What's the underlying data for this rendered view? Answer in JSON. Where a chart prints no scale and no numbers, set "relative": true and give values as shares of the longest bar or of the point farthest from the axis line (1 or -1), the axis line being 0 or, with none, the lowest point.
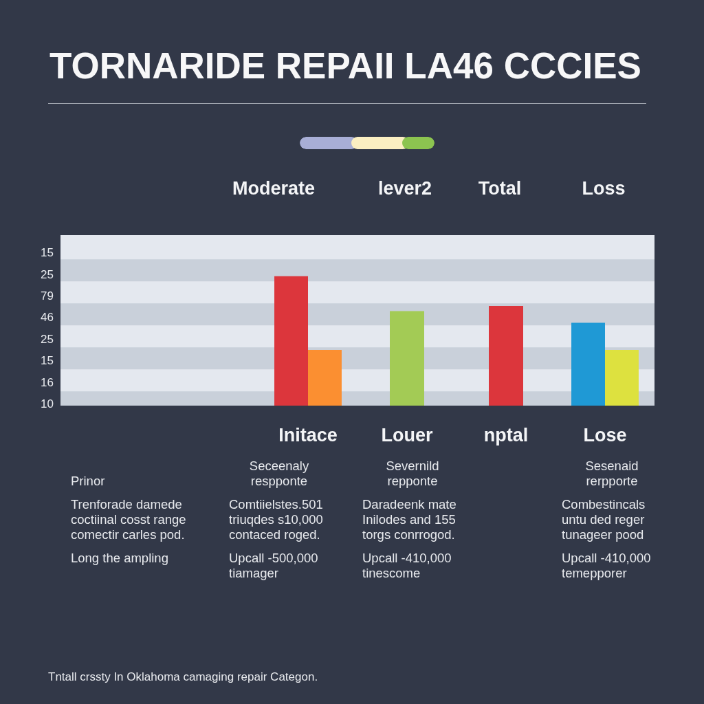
{
  "chart_data": {
    "type": "bar",
    "title": "TORNARIDE REPAII LA46 CCCIES",
    "categories": [
      null,
      null,
      "Initace",
      "Louer",
      "nptal",
      "Lose"
    ],
    "relative": true,
    "series": [
      {
        "values": [
          null,
          null,
          1,
          0.73,
          0.77,
          0.64
        ],
        "colors": [
          null,
          null,
          "#dc363c",
          "#a3cb55",
          "#dc363c",
          "#1f99d5"
        ]
      },
      {
        "values": [
          null,
          null,
          0.43,
          null,
          null,
          0.43
        ],
        "colors": [
          null,
          null,
          "#fb8f31",
          null,
          null,
          "#dde13f"
        ]
      }
    ],
    "bands": [
      {
        "axis": "y",
        "from": 0,
        "to": 0.11,
        "color": "#c9d0da"
      },
      {
        "axis": "y",
        "from": 0.28,
        "to": 0.45,
        "color": "#c9d0da"
      },
      {
        "axis": "y",
        "from": 0.62,
        "to": 0.79,
        "color": "#c9d0da"
      },
      {
        "axis": "y",
        "from": 0.96,
        "to": 1.13,
        "color": "#c9d0da"
      }
    ],
    "annotations": [
      "Moderate",
      "lever2",
      "Total",
      "Loss",
      "15",
      "25",
      "79",
      "46",
      "25",
      "15",
      "16",
      "10",
      "Prinor",
      "Trenforade damede coctiinal cosst range comectir carles pod.",
      "Long the ampling",
      "Seceenaly respponte",
      "Comtiielstes.501 triuqdes s10,000 contaced roged.",
      "Upcall -500,000 tiamager",
      "Severnild repponte",
      "Daradeenk mate Inilodes and 155 torgs conrrogod.",
      "Upcall -410,000 tinescome",
      "Sesenaid rerpporte",
      "Combestincals untu ded reger tunageer pood",
      "Upcall -410,000 temepporer",
      "Tntall crssty In Oklahoma camaging repair Categon."
    ]
  }
}
